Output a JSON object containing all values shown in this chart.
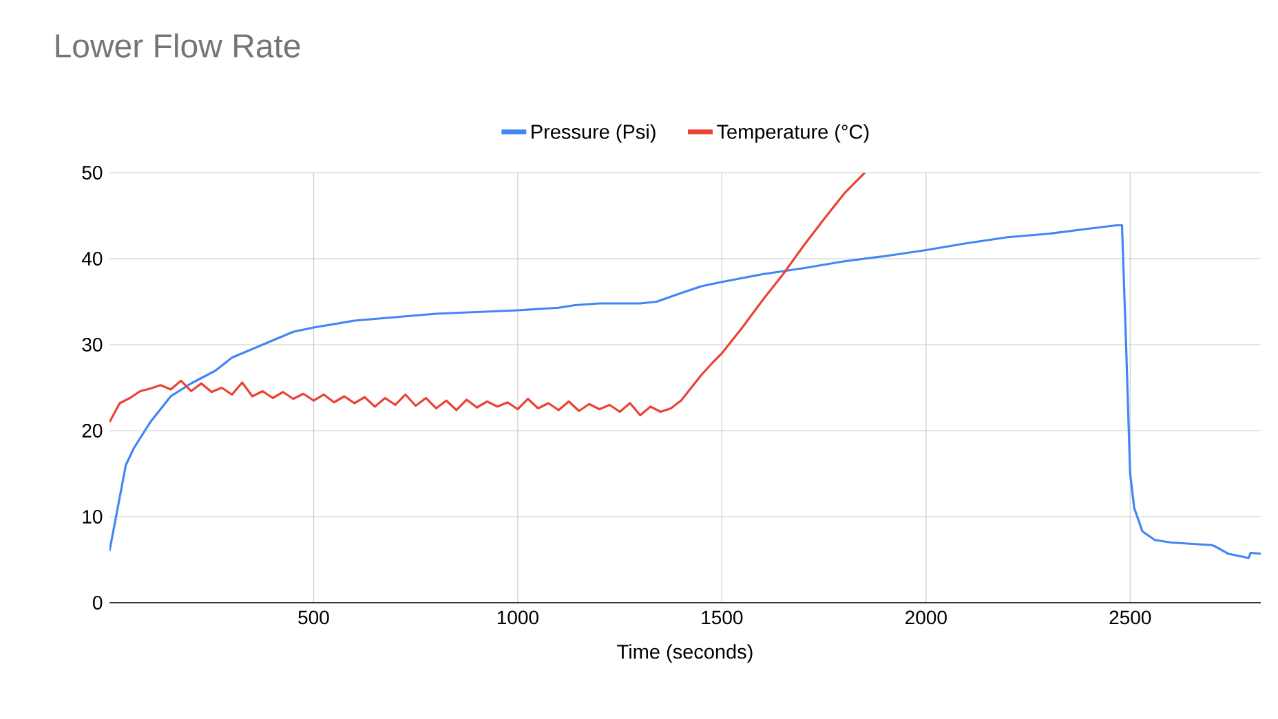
{
  "chart_data": {
    "type": "line",
    "title": "Lower Flow Rate",
    "xlabel": "Time (seconds)",
    "xlim": [
      0,
      2820
    ],
    "xticks": [
      500,
      1000,
      1500,
      2000,
      2500
    ],
    "ylim": [
      0,
      50
    ],
    "yticks": [
      0,
      10,
      20,
      30,
      40,
      50
    ],
    "grid": true,
    "legend": "top",
    "marker": "none",
    "line_style": "solid",
    "series": [
      {
        "name": "Pressure (Psi)",
        "color": "#4285f4",
        "x": [
          0,
          20,
          40,
          60,
          100,
          150,
          200,
          260,
          300,
          400,
          450,
          500,
          600,
          700,
          800,
          900,
          1000,
          1100,
          1140,
          1200,
          1300,
          1340,
          1400,
          1450,
          1500,
          1600,
          1700,
          1800,
          1900,
          2000,
          2100,
          2200,
          2300,
          2400,
          2470,
          2480,
          2490,
          2500,
          2510,
          2530,
          2560,
          2600,
          2700,
          2710,
          2740,
          2790,
          2795,
          2820
        ],
        "values": [
          6,
          11,
          16,
          18,
          21,
          24,
          25.5,
          27,
          28.5,
          30.5,
          31.5,
          32,
          32.8,
          33.2,
          33.6,
          33.8,
          34,
          34.3,
          34.6,
          34.8,
          34.8,
          35,
          36,
          36.8,
          37.3,
          38.2,
          38.9,
          39.7,
          40.3,
          41,
          41.8,
          42.5,
          42.9,
          43.5,
          43.9,
          43.9,
          30,
          15,
          11,
          8.3,
          7.3,
          7,
          6.7,
          6.5,
          5.7,
          5.2,
          5.8,
          5.7
        ]
      },
      {
        "name": "Temperature (°C)",
        "color": "#ea4335",
        "x": [
          0,
          25,
          50,
          75,
          100,
          125,
          150,
          175,
          200,
          225,
          250,
          275,
          300,
          325,
          350,
          375,
          400,
          425,
          450,
          475,
          500,
          525,
          550,
          575,
          600,
          625,
          650,
          675,
          700,
          725,
          750,
          775,
          800,
          825,
          850,
          875,
          900,
          925,
          950,
          975,
          1000,
          1025,
          1050,
          1075,
          1100,
          1125,
          1150,
          1175,
          1200,
          1225,
          1250,
          1275,
          1300,
          1325,
          1350,
          1375,
          1400,
          1425,
          1450,
          1475,
          1500,
          1550,
          1600,
          1650,
          1700,
          1750,
          1800,
          1850
        ],
        "values": [
          21.0,
          23.2,
          23.8,
          24.6,
          24.9,
          25.3,
          24.8,
          25.8,
          24.6,
          25.5,
          24.5,
          25.0,
          24.2,
          25.6,
          24.0,
          24.6,
          23.8,
          24.5,
          23.7,
          24.3,
          23.5,
          24.2,
          23.3,
          24.0,
          23.2,
          23.9,
          22.8,
          23.8,
          23.0,
          24.2,
          22.9,
          23.8,
          22.6,
          23.5,
          22.4,
          23.6,
          22.7,
          23.4,
          22.8,
          23.3,
          22.5,
          23.7,
          22.6,
          23.2,
          22.4,
          23.4,
          22.3,
          23.1,
          22.5,
          23.0,
          22.2,
          23.2,
          21.8,
          22.8,
          22.2,
          22.6,
          23.5,
          25.0,
          26.5,
          27.8,
          29.0,
          32.0,
          35.2,
          38.2,
          41.5,
          44.6,
          47.6,
          50
        ]
      }
    ]
  }
}
